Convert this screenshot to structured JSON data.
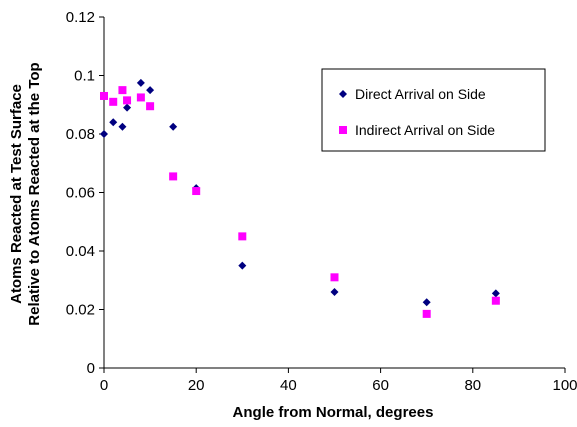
{
  "chart_data": {
    "type": "scatter",
    "title": "",
    "xlabel": "Angle from Normal, degrees",
    "ylabel_lines": [
      "Atoms Reacted at Test Surface",
      "Relative to Atoms Reacted at the Top"
    ],
    "xlim": [
      0,
      100
    ],
    "ylim": [
      0,
      0.12
    ],
    "x_ticks": [
      0,
      20,
      40,
      60,
      80,
      100
    ],
    "y_ticks": [
      0,
      0.02,
      0.04,
      0.06,
      0.08,
      0.1,
      0.12
    ],
    "x_tick_labels": [
      "0",
      "20",
      "40",
      "60",
      "80",
      "100"
    ],
    "y_tick_labels": [
      "0",
      "0.02",
      "0.04",
      "0.06",
      "0.08",
      "0.1",
      "0.12"
    ],
    "grid": false,
    "legend_position": "top-right",
    "series": [
      {
        "name": "Direct Arrival on Side",
        "marker": "diamond",
        "color": "#000080",
        "x": [
          0,
          2,
          4,
          5,
          8,
          10,
          15,
          20,
          30,
          50,
          70,
          85
        ],
        "y": [
          0.08,
          0.084,
          0.0825,
          0.089,
          0.0975,
          0.095,
          0.0825,
          0.0615,
          0.035,
          0.026,
          0.0225,
          0.0255
        ]
      },
      {
        "name": "Indirect Arrival on Side",
        "marker": "square",
        "color": "#ff00ff",
        "x": [
          0,
          2,
          4,
          5,
          8,
          10,
          15,
          20,
          30,
          50,
          70,
          85
        ],
        "y": [
          0.093,
          0.091,
          0.095,
          0.0915,
          0.0925,
          0.0895,
          0.0655,
          0.0605,
          0.045,
          0.031,
          0.0185,
          0.023
        ]
      }
    ]
  }
}
